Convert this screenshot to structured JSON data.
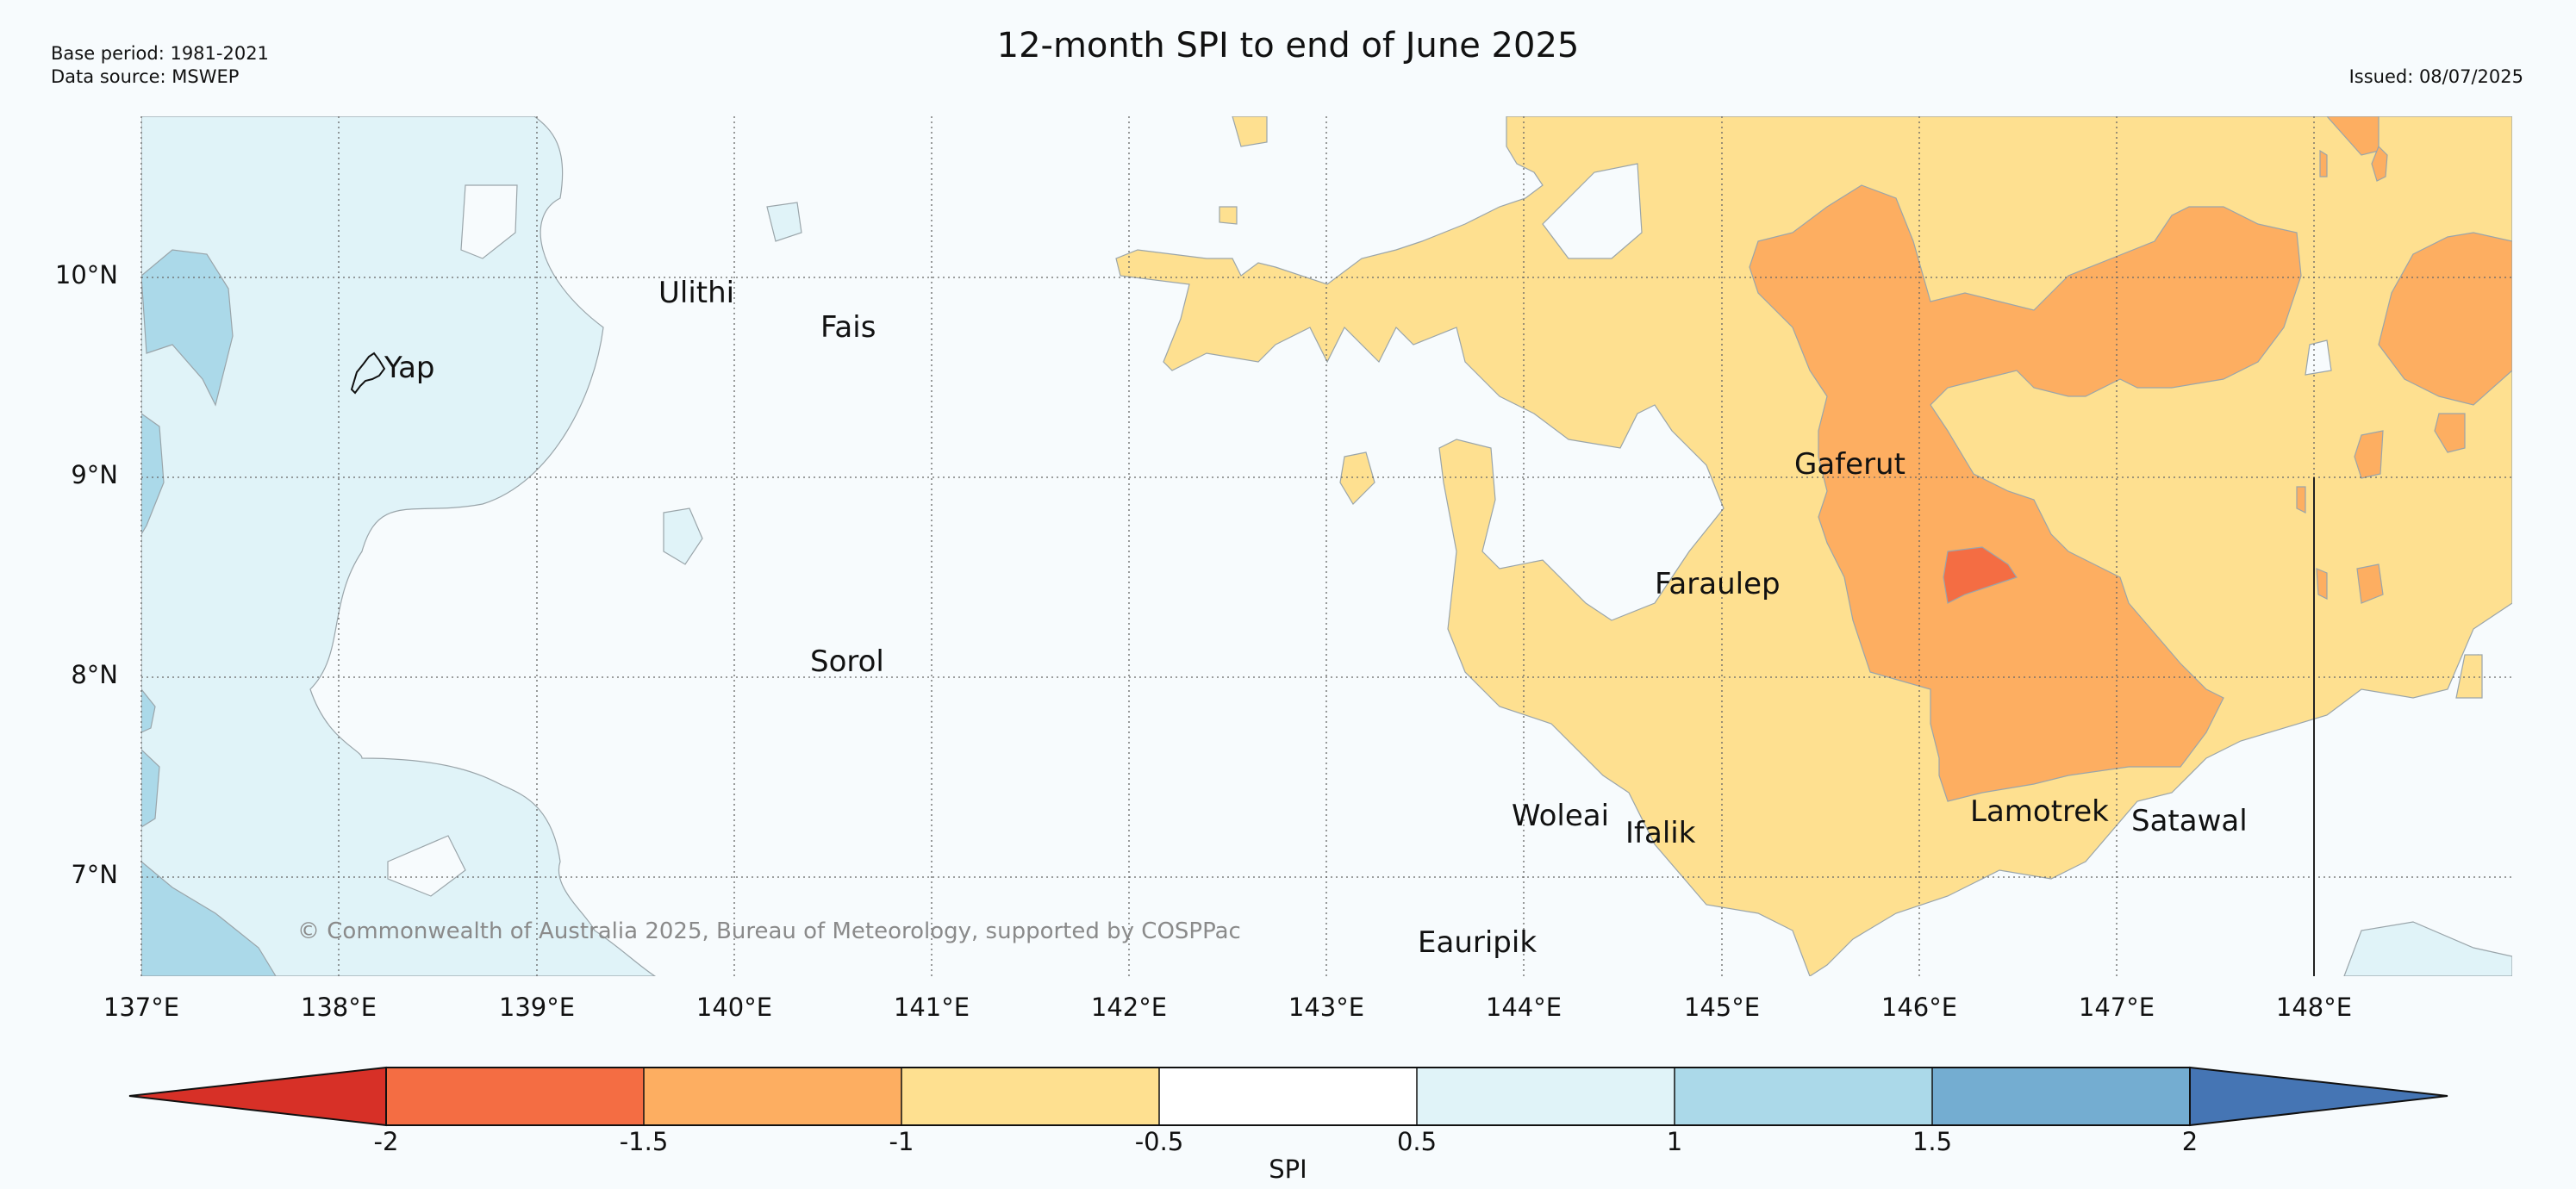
{
  "title": "12-month SPI to end of June 2025",
  "base_period": "Base period: 1981-2021",
  "data_source": "Data source: MSWEP",
  "issued": "Issued: 08/07/2025",
  "copyright": "© Commonwealth of Australia 2025, Bureau of Meteorology, supported by COSPPac",
  "map": {
    "lat_labels": [
      {
        "text": "10°N",
        "lat": 10
      },
      {
        "text": "9°N",
        "lat": 9
      },
      {
        "text": "8°N",
        "lat": 8
      },
      {
        "text": "7°N",
        "lat": 7
      }
    ],
    "lon_labels": [
      {
        "text": "137°E",
        "lon": 137
      },
      {
        "text": "138°E",
        "lon": 138
      },
      {
        "text": "139°E",
        "lon": 139
      },
      {
        "text": "140°E",
        "lon": 140
      },
      {
        "text": "141°E",
        "lon": 141
      },
      {
        "text": "142°E",
        "lon": 142
      },
      {
        "text": "143°E",
        "lon": 143
      },
      {
        "text": "144°E",
        "lon": 144
      },
      {
        "text": "145°E",
        "lon": 145
      },
      {
        "text": "146°E",
        "lon": 146
      },
      {
        "text": "147°E",
        "lon": 147
      },
      {
        "text": "148°E",
        "lon": 148
      }
    ],
    "places": [
      {
        "name": "Yap",
        "lon": 138.2,
        "lat": 9.5
      },
      {
        "name": "Ulithi",
        "lon": 139.65,
        "lat": 10.0
      },
      {
        "name": "Fais",
        "lon": 140.5,
        "lat": 9.77
      },
      {
        "name": "Gaferut",
        "lon": 145.35,
        "lat": 9.05
      },
      {
        "name": "Faraulep",
        "lon": 144.65,
        "lat": 8.45
      },
      {
        "name": "Sorol",
        "lon": 140.38,
        "lat": 8.08
      },
      {
        "name": "Woleai",
        "lon": 143.9,
        "lat": 7.35
      },
      {
        "name": "Ifalik",
        "lon": 144.45,
        "lat": 7.25
      },
      {
        "name": "Lamotrek",
        "lon": 146.27,
        "lat": 7.36
      },
      {
        "name": "Satawal",
        "lon": 147.03,
        "lat": 7.32
      },
      {
        "name": "Eauripik",
        "lon": 143.45,
        "lat": 6.68
      }
    ]
  },
  "colorbar": {
    "label": "SPI",
    "ticks": [
      "-2",
      "-1.5",
      "-1",
      "-0.5",
      "0.5",
      "1",
      "1.5",
      "2"
    ],
    "colors": {
      "below_-2": "#d73027",
      "-2_to_-1.5": "#f46d43",
      "-1.5_to_-1": "#fdae61",
      "-1_to_-0.5": "#fee090",
      "-0.5_to_0.5": "#ffffff",
      "0.5_to_1": "#e0f3f8",
      "1_to_1.5": "#abd9e9",
      "1.5_to_2": "#74add1",
      "above_2": "#4575b4"
    }
  }
}
